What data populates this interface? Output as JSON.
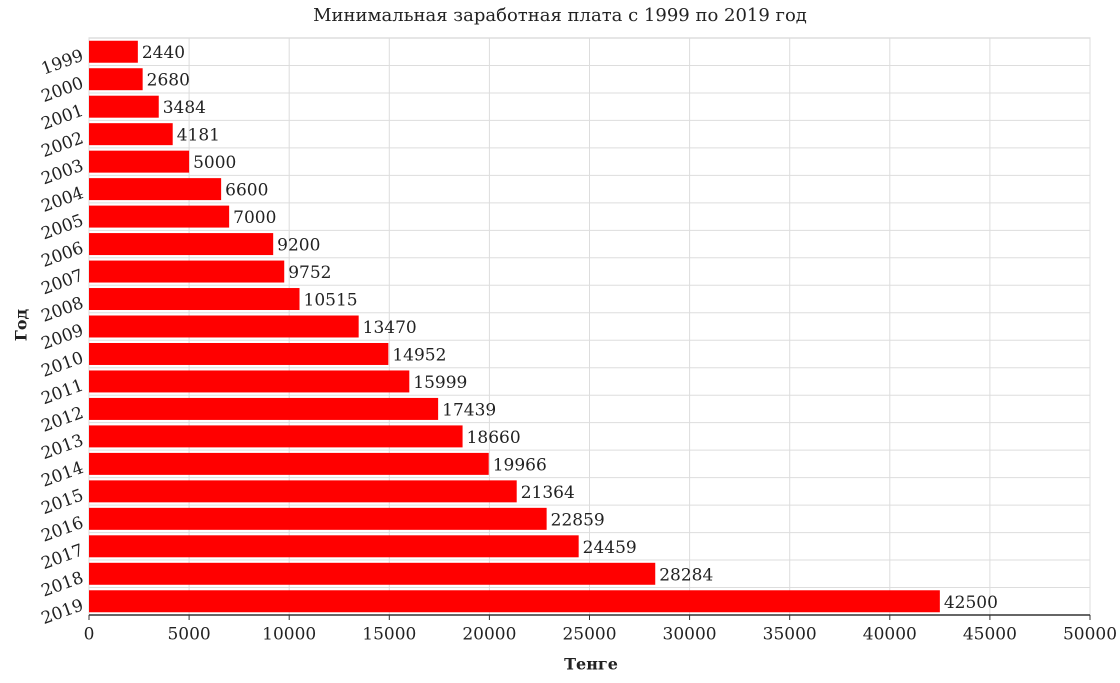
{
  "chart_data": {
    "type": "barh",
    "title": "Минимальная заработная плата с 1999 по 2019 год",
    "x_label": "Тенге",
    "y_label": "Год",
    "categories": [
      "1999",
      "2000",
      "2001",
      "2002",
      "2003",
      "2004",
      "2005",
      "2006",
      "2007",
      "2008",
      "2009",
      "2010",
      "2011",
      "2012",
      "2013",
      "2014",
      "2015",
      "2016",
      "2017",
      "2018",
      "2019"
    ],
    "values": [
      2440,
      2680,
      3484,
      4181,
      5000,
      6600,
      7000,
      9200,
      9752,
      10515,
      13470,
      14952,
      15999,
      17439,
      18660,
      19966,
      21364,
      22859,
      24459,
      28284,
      42500
    ],
    "color": "#ff0000",
    "xlim": [
      0,
      50000
    ],
    "xticks": [
      0,
      5000,
      10000,
      15000,
      20000,
      25000,
      30000,
      35000,
      40000,
      45000,
      50000
    ],
    "grid": true
  }
}
